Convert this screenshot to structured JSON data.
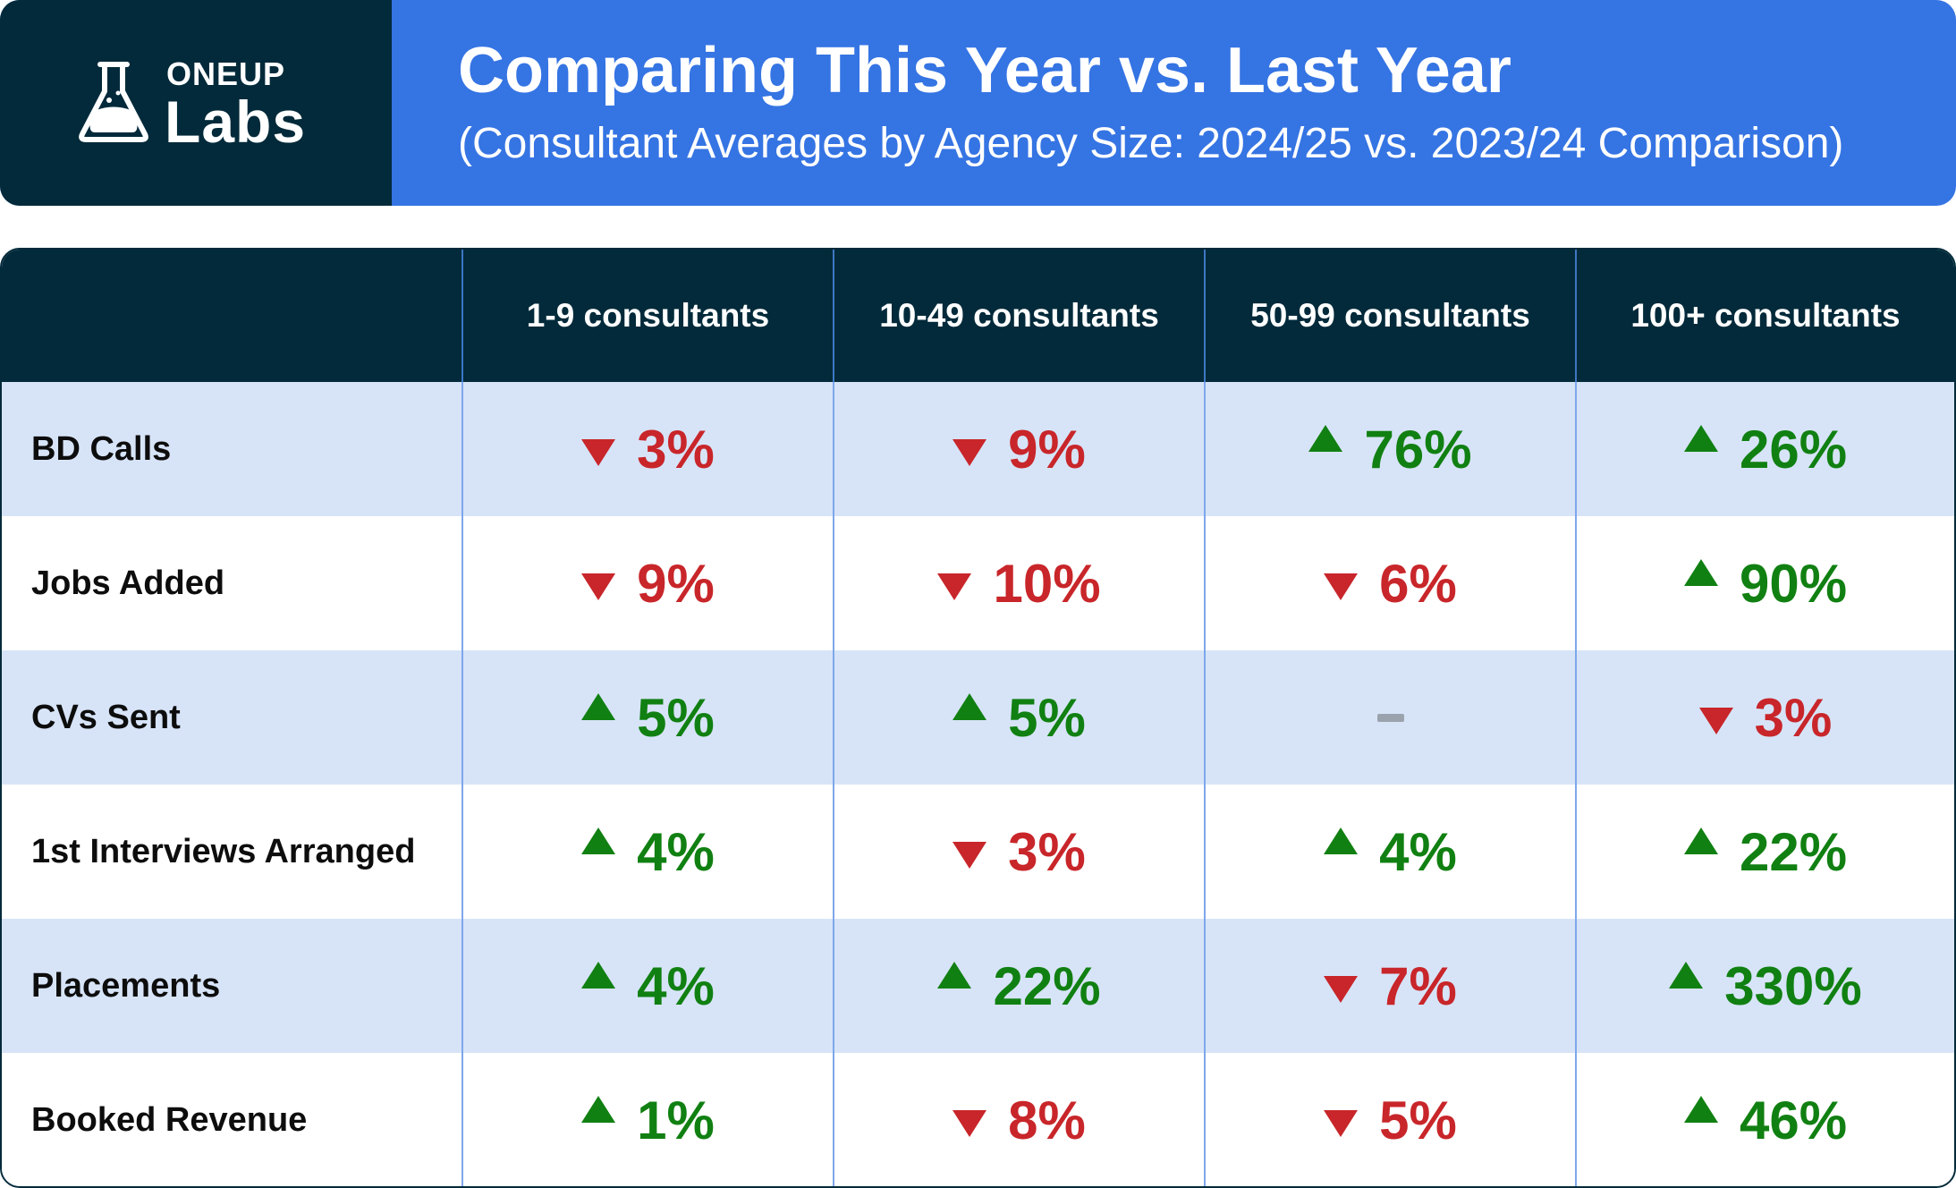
{
  "logo": {
    "top": "ONEUP",
    "bottom": "Labs"
  },
  "header": {
    "title": "Comparing This Year vs. Last Year",
    "subtitle": "(Consultant Averages by Agency Size: 2024/25 vs. 2023/24 Comparison)"
  },
  "colors": {
    "navy": "#022a3a",
    "blue": "#3574e3",
    "up": "#118012",
    "down": "#c8262a",
    "neutral": "#9aa3ad"
  },
  "table": {
    "columns": [
      "1-9 consultants",
      "10-49 consultants",
      "50-99 consultants",
      "100+ consultants"
    ],
    "rows": [
      {
        "label": "BD Calls",
        "cells": [
          {
            "dir": "down",
            "value": "3%"
          },
          {
            "dir": "down",
            "value": "9%"
          },
          {
            "dir": "up",
            "value": "76%"
          },
          {
            "dir": "up",
            "value": "26%"
          }
        ]
      },
      {
        "label": "Jobs Added",
        "cells": [
          {
            "dir": "down",
            "value": "9%"
          },
          {
            "dir": "down",
            "value": "10%"
          },
          {
            "dir": "down",
            "value": "6%"
          },
          {
            "dir": "up",
            "value": "90%"
          }
        ]
      },
      {
        "label": "CVs Sent",
        "cells": [
          {
            "dir": "up",
            "value": "5%"
          },
          {
            "dir": "up",
            "value": "5%"
          },
          {
            "dir": "none",
            "value": ""
          },
          {
            "dir": "down",
            "value": "3%"
          }
        ]
      },
      {
        "label": "1st Interviews Arranged",
        "cells": [
          {
            "dir": "up",
            "value": "4%"
          },
          {
            "dir": "down",
            "value": "3%"
          },
          {
            "dir": "up",
            "value": "4%"
          },
          {
            "dir": "up",
            "value": "22%"
          }
        ]
      },
      {
        "label": "Placements",
        "cells": [
          {
            "dir": "up",
            "value": "4%"
          },
          {
            "dir": "up",
            "value": "22%"
          },
          {
            "dir": "down",
            "value": "7%"
          },
          {
            "dir": "up",
            "value": "330%"
          }
        ]
      },
      {
        "label": "Booked Revenue",
        "cells": [
          {
            "dir": "up",
            "value": "1%"
          },
          {
            "dir": "down",
            "value": "8%"
          },
          {
            "dir": "down",
            "value": "5%"
          },
          {
            "dir": "up",
            "value": "46%"
          }
        ]
      }
    ]
  }
}
